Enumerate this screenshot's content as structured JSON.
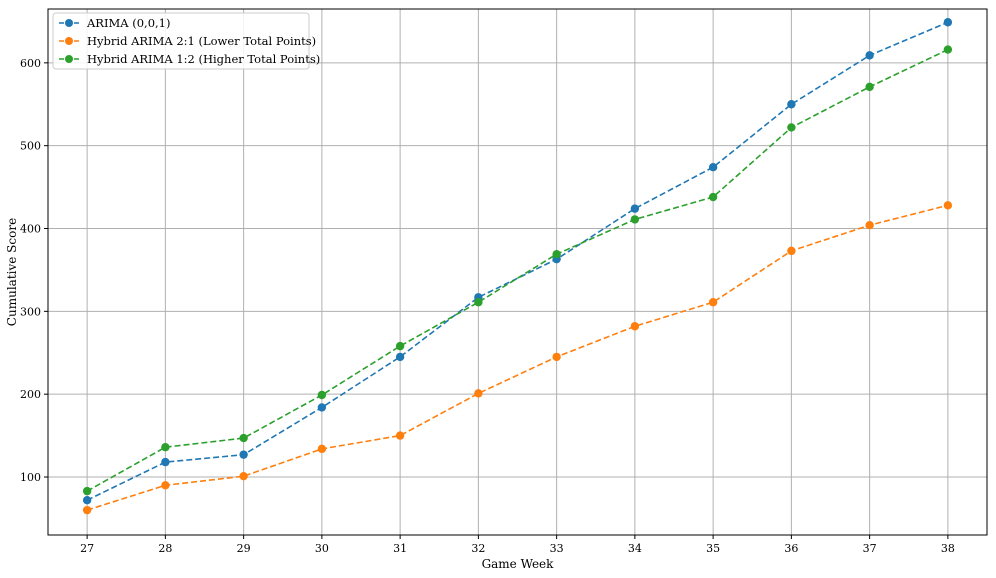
{
  "chart_data": {
    "type": "line",
    "title": "",
    "xlabel": "Game Week",
    "ylabel": "Cumulative Score",
    "x": [
      27,
      28,
      29,
      30,
      31,
      32,
      33,
      34,
      35,
      36,
      37,
      38
    ],
    "xlim": [
      26.5,
      38.5
    ],
    "ylim": [
      30,
      665
    ],
    "yticks": [
      100,
      200,
      300,
      400,
      500,
      600
    ],
    "grid": true,
    "legend_position": "top-left",
    "series": [
      {
        "name": "ARIMA (0,0,1)",
        "color": "#1f77b4",
        "values": [
          72,
          118,
          127,
          184,
          245,
          317,
          363,
          424,
          474,
          550,
          609,
          649
        ]
      },
      {
        "name": "Hybrid ARIMA 2:1 (Lower Total Points)",
        "color": "#ff7f0e",
        "values": [
          60,
          90,
          101,
          134,
          150,
          201,
          245,
          282,
          311,
          373,
          404,
          428
        ]
      },
      {
        "name": "Hybrid ARIMA 1:2 (Higher Total Points)",
        "color": "#2ca02c",
        "values": [
          83,
          136,
          147,
          199,
          258,
          311,
          369,
          411,
          438,
          522,
          571,
          616
        ]
      }
    ]
  }
}
